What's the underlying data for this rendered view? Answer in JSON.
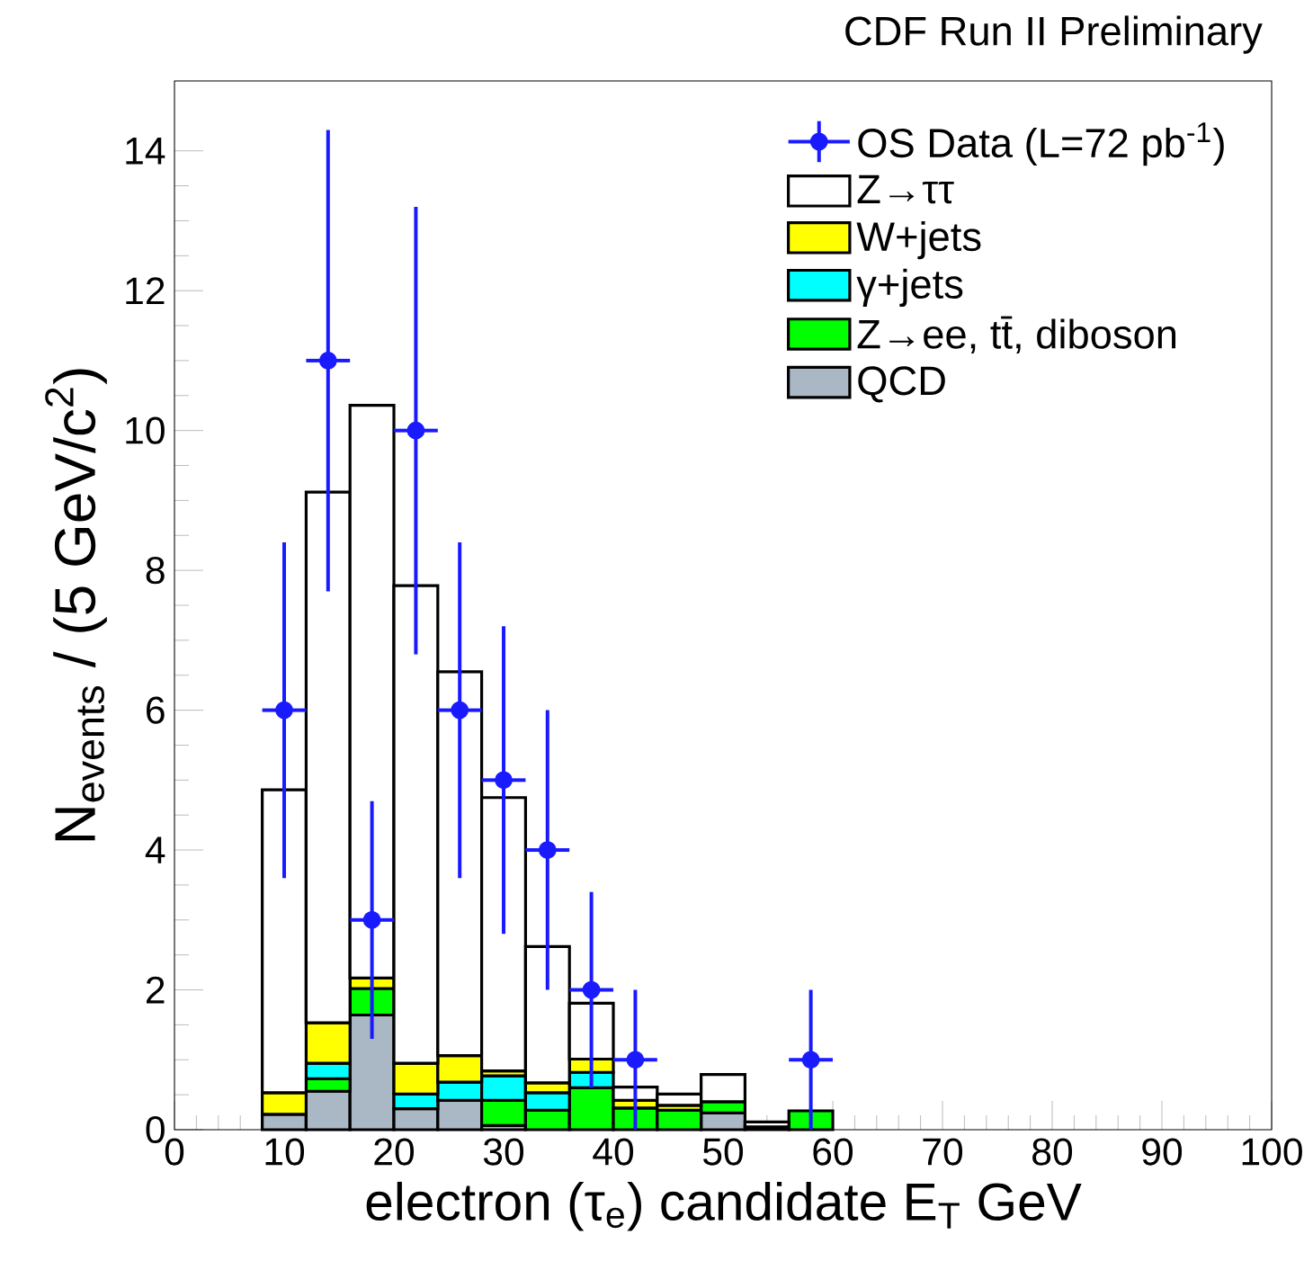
{
  "chart_data": {
    "type": "bar",
    "title": "CDF Run II Preliminary",
    "xlabel": "electron (τ$_{e}$) candidate E$_{T}$  GeV",
    "ylabel": "N$_{events}$ / (5 GeV/c$^{2}$)",
    "x": [
      10,
      14,
      18,
      22,
      26,
      30,
      34,
      38,
      42,
      46,
      50,
      54,
      58
    ],
    "stacked": true,
    "series": [
      {
        "name": "QCD",
        "color": "#a9b8c4",
        "values": [
          0.22,
          0.55,
          1.64,
          0.3,
          0.42,
          0.06,
          0,
          0,
          0,
          0,
          0.24,
          0.04,
          0
        ]
      },
      {
        "name": "Z→ee, tt̄, diboson",
        "color": "#00ff00",
        "values": [
          0,
          0.18,
          0.38,
          0,
          0,
          0.36,
          0.28,
          0.6,
          0.31,
          0.28,
          0.16,
          0,
          0.27
        ]
      },
      {
        "name": "γ+jets",
        "color": "#00ffff",
        "values": [
          0,
          0.22,
          null,
          0.21,
          0.26,
          0.35,
          0.25,
          0.22,
          0,
          0,
          0,
          0,
          0
        ]
      },
      {
        "name": "W+jets",
        "color": "#ffff00",
        "values": [
          0.31,
          0.58,
          0.15,
          0.44,
          0.38,
          0.07,
          0.14,
          0.19,
          0.11,
          0.07,
          0,
          0,
          0
        ]
      },
      {
        "name": "Z→ττ",
        "color": "#ffffff",
        "values": [
          4.33,
          7.59,
          8.19,
          6.83,
          5.49,
          3.91,
          1.95,
          0.8,
          0.19,
          0.16,
          0.39,
          0.07,
          0
        ]
      },
      {
        "name": "OS Data (L=72 pb$^{-1}$)",
        "type": "scatter",
        "color": "#1a1aff",
        "marker": "circle",
        "x": [
          10,
          14,
          18,
          22,
          26,
          30,
          34,
          38,
          42,
          58
        ],
        "values": [
          6,
          11,
          3,
          10,
          6,
          5,
          4,
          2,
          1,
          1
        ],
        "errors": [
          2.4,
          3.3,
          1.7,
          3.2,
          2.4,
          2.2,
          2,
          1.4,
          1,
          1
        ],
        "xerrors": [
          2,
          2,
          2,
          2,
          2,
          2,
          2,
          2,
          2,
          2
        ]
      }
    ],
    "xlim": [
      0,
      100
    ],
    "ylim": [
      0,
      15
    ],
    "xticks": [
      0,
      10,
      20,
      30,
      40,
      50,
      60,
      70,
      80,
      90,
      100
    ],
    "yticks": [
      0,
      2,
      4,
      6,
      8,
      10,
      12,
      14
    ],
    "legend": "top right"
  }
}
